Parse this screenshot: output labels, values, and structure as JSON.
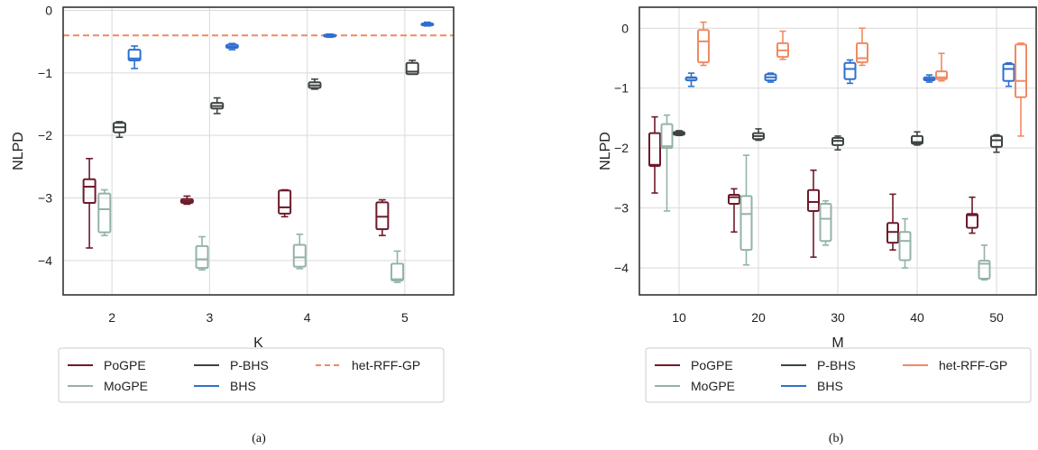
{
  "colors": {
    "PoGPE": "#6e1a2a",
    "MoGPE": "#93b3a8",
    "P-BHS": "#3d4443",
    "BHS": "#2f6fcf",
    "het-RFF-GP": "#f08a62",
    "grid": "#d9d9d9",
    "frame": "#333333"
  },
  "chart_data": [
    {
      "type": "box",
      "caption": "(a)",
      "xlabel": "K",
      "ylabel": "NLPD",
      "categories": [
        "2",
        "3",
        "4",
        "5"
      ],
      "ylim": [
        -4.55,
        0.05
      ],
      "yticks": [
        0,
        -1,
        -2,
        -3,
        -4
      ],
      "grid": true,
      "legend": [
        "PoGPE",
        "P-BHS",
        "het-RFF-GP",
        "MoGPE",
        "BHS"
      ],
      "reference_lines": [
        {
          "name": "het-RFF-GP",
          "y": -0.4,
          "style": "dashed"
        }
      ],
      "series": [
        {
          "name": "PoGPE",
          "boxes": [
            {
              "whislo": -3.8,
              "q1": -3.08,
              "med": -2.82,
              "q3": -2.7,
              "whishi": -2.37
            },
            {
              "whislo": -3.1,
              "q1": -3.08,
              "med": -3.05,
              "q3": -3.02,
              "whishi": -2.97
            },
            {
              "whislo": -3.3,
              "q1": -3.25,
              "med": -3.15,
              "q3": -2.88,
              "whishi": -2.87
            },
            {
              "whislo": -3.6,
              "q1": -3.5,
              "med": -3.3,
              "q3": -3.07,
              "whishi": -3.03
            }
          ]
        },
        {
          "name": "MoGPE",
          "boxes": [
            {
              "whislo": -3.6,
              "q1": -3.55,
              "med": -3.18,
              "q3": -2.93,
              "whishi": -2.87
            },
            {
              "whislo": -4.15,
              "q1": -4.12,
              "med": -3.98,
              "q3": -3.77,
              "whishi": -3.62
            },
            {
              "whislo": -4.13,
              "q1": -4.1,
              "med": -3.95,
              "q3": -3.75,
              "whishi": -3.58
            },
            {
              "whislo": -4.35,
              "q1": -4.32,
              "med": -4.3,
              "q3": -4.05,
              "whishi": -3.85
            }
          ]
        },
        {
          "name": "P-BHS",
          "boxes": [
            {
              "whislo": -2.03,
              "q1": -1.95,
              "med": -1.87,
              "q3": -1.8,
              "whishi": -1.78
            },
            {
              "whislo": -1.65,
              "q1": -1.57,
              "med": -1.53,
              "q3": -1.48,
              "whishi": -1.4
            },
            {
              "whislo": -1.26,
              "q1": -1.24,
              "med": -1.2,
              "q3": -1.15,
              "whishi": -1.1
            },
            {
              "whislo": -1.02,
              "q1": -1.02,
              "med": -0.98,
              "q3": -0.84,
              "whishi": -0.8
            }
          ]
        },
        {
          "name": "BHS",
          "boxes": [
            {
              "whislo": -0.93,
              "q1": -0.8,
              "med": -0.77,
              "q3": -0.63,
              "whishi": -0.57
            },
            {
              "whislo": -0.63,
              "q1": -0.6,
              "med": -0.58,
              "q3": -0.55,
              "whishi": -0.53
            },
            {
              "whislo": -0.43,
              "q1": -0.42,
              "med": -0.41,
              "q3": -0.39,
              "whishi": -0.38
            },
            {
              "whislo": -0.25,
              "q1": -0.24,
              "med": -0.23,
              "q3": -0.21,
              "whishi": -0.19
            }
          ]
        }
      ]
    },
    {
      "type": "box",
      "caption": "(b)",
      "xlabel": "M",
      "ylabel": "NLPD",
      "categories": [
        "10",
        "20",
        "30",
        "40",
        "50"
      ],
      "ylim": [
        -4.45,
        0.35
      ],
      "yticks": [
        0,
        -1,
        -2,
        -3,
        -4
      ],
      "grid": true,
      "legend": [
        "PoGPE",
        "P-BHS",
        "het-RFF-GP",
        "MoGPE",
        "BHS"
      ],
      "series": [
        {
          "name": "PoGPE",
          "boxes": [
            {
              "whislo": -2.75,
              "q1": -2.3,
              "med": -2.28,
              "q3": -1.75,
              "whishi": -1.48
            },
            {
              "whislo": -3.4,
              "q1": -2.93,
              "med": -2.82,
              "q3": -2.78,
              "whishi": -2.68
            },
            {
              "whislo": -3.82,
              "q1": -3.05,
              "med": -2.9,
              "q3": -2.7,
              "whishi": -2.37
            },
            {
              "whislo": -3.7,
              "q1": -3.58,
              "med": -3.4,
              "q3": -3.25,
              "whishi": -2.77
            },
            {
              "whislo": -3.42,
              "q1": -3.33,
              "med": -3.12,
              "q3": -3.1,
              "whishi": -2.82
            }
          ]
        },
        {
          "name": "MoGPE",
          "boxes": [
            {
              "whislo": -3.05,
              "q1": -2.0,
              "med": -1.97,
              "q3": -1.6,
              "whishi": -1.45
            },
            {
              "whislo": -3.95,
              "q1": -3.7,
              "med": -3.1,
              "q3": -2.8,
              "whishi": -2.12
            },
            {
              "whislo": -3.62,
              "q1": -3.55,
              "med": -3.18,
              "q3": -2.93,
              "whishi": -2.88
            },
            {
              "whislo": -4.0,
              "q1": -3.87,
              "med": -3.55,
              "q3": -3.4,
              "whishi": -3.18
            },
            {
              "whislo": -4.2,
              "q1": -4.18,
              "med": -3.93,
              "q3": -3.88,
              "whishi": -3.62
            }
          ]
        },
        {
          "name": "P-BHS",
          "boxes": [
            {
              "whislo": -1.79,
              "q1": -1.78,
              "med": -1.75,
              "q3": -1.73,
              "whishi": -1.71
            },
            {
              "whislo": -1.87,
              "q1": -1.85,
              "med": -1.8,
              "q3": -1.75,
              "whishi": -1.68
            },
            {
              "whislo": -2.03,
              "q1": -1.95,
              "med": -1.88,
              "q3": -1.83,
              "whishi": -1.8
            },
            {
              "whislo": -1.95,
              "q1": -1.93,
              "med": -1.9,
              "q3": -1.8,
              "whishi": -1.73
            },
            {
              "whislo": -2.07,
              "q1": -1.98,
              "med": -1.87,
              "q3": -1.8,
              "whishi": -1.78
            }
          ]
        },
        {
          "name": "BHS",
          "boxes": [
            {
              "whislo": -0.97,
              "q1": -0.87,
              "med": -0.83,
              "q3": -0.82,
              "whishi": -0.75
            },
            {
              "whislo": -0.9,
              "q1": -0.87,
              "med": -0.82,
              "q3": -0.77,
              "whishi": -0.75
            },
            {
              "whislo": -0.92,
              "q1": -0.85,
              "med": -0.68,
              "q3": -0.58,
              "whishi": -0.53
            },
            {
              "whislo": -0.9,
              "q1": -0.87,
              "med": -0.85,
              "q3": -0.82,
              "whishi": -0.78
            },
            {
              "whislo": -0.97,
              "q1": -0.88,
              "med": -0.68,
              "q3": -0.6,
              "whishi": -0.58
            }
          ]
        },
        {
          "name": "het-RFF-GP",
          "boxes": [
            {
              "whislo": -0.62,
              "q1": -0.57,
              "med": -0.22,
              "q3": -0.03,
              "whishi": 0.1
            },
            {
              "whislo": -0.52,
              "q1": -0.48,
              "med": -0.37,
              "q3": -0.25,
              "whishi": -0.05
            },
            {
              "whislo": -0.62,
              "q1": -0.57,
              "med": -0.5,
              "q3": -0.25,
              "whishi": 0.0
            },
            {
              "whislo": -0.88,
              "q1": -0.85,
              "med": -0.82,
              "q3": -0.72,
              "whishi": -0.42
            },
            {
              "whislo": -1.8,
              "q1": -1.15,
              "med": -0.88,
              "q3": -0.27,
              "whishi": -0.25
            }
          ]
        }
      ]
    }
  ]
}
